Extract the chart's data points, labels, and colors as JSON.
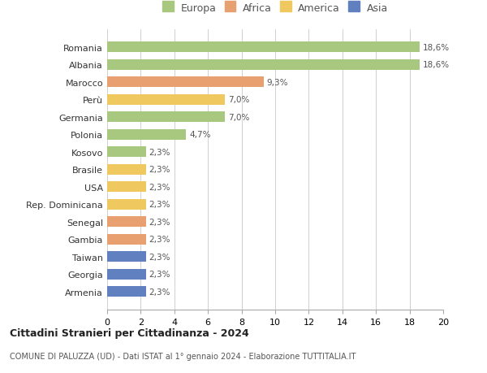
{
  "countries": [
    "Romania",
    "Albania",
    "Marocco",
    "Perù",
    "Germania",
    "Polonia",
    "Kosovo",
    "Brasile",
    "USA",
    "Rep. Dominicana",
    "Senegal",
    "Gambia",
    "Taiwan",
    "Georgia",
    "Armenia"
  ],
  "values": [
    18.6,
    18.6,
    9.3,
    7.0,
    7.0,
    4.7,
    2.3,
    2.3,
    2.3,
    2.3,
    2.3,
    2.3,
    2.3,
    2.3,
    2.3
  ],
  "labels": [
    "18,6%",
    "18,6%",
    "9,3%",
    "7,0%",
    "7,0%",
    "4,7%",
    "2,3%",
    "2,3%",
    "2,3%",
    "2,3%",
    "2,3%",
    "2,3%",
    "2,3%",
    "2,3%",
    "2,3%"
  ],
  "colors": [
    "#a8c880",
    "#a8c880",
    "#e8a070",
    "#f0c860",
    "#a8c880",
    "#a8c880",
    "#a8c880",
    "#f0c860",
    "#f0c860",
    "#f0c860",
    "#e8a070",
    "#e8a070",
    "#6080c0",
    "#6080c0",
    "#6080c0"
  ],
  "legend": [
    {
      "label": "Europa",
      "color": "#a8c880"
    },
    {
      "label": "Africa",
      "color": "#e8a070"
    },
    {
      "label": "America",
      "color": "#f0c860"
    },
    {
      "label": "Asia",
      "color": "#6080c0"
    }
  ],
  "xlim": [
    0,
    20
  ],
  "xticks": [
    0,
    2,
    4,
    6,
    8,
    10,
    12,
    14,
    16,
    18,
    20
  ],
  "title": "Cittadini Stranieri per Cittadinanza - 2024",
  "subtitle": "COMUNE DI PALUZZA (UD) - Dati ISTAT al 1° gennaio 2024 - Elaborazione TUTTITALIA.IT",
  "background_color": "#ffffff",
  "grid_color": "#d0d0d0"
}
